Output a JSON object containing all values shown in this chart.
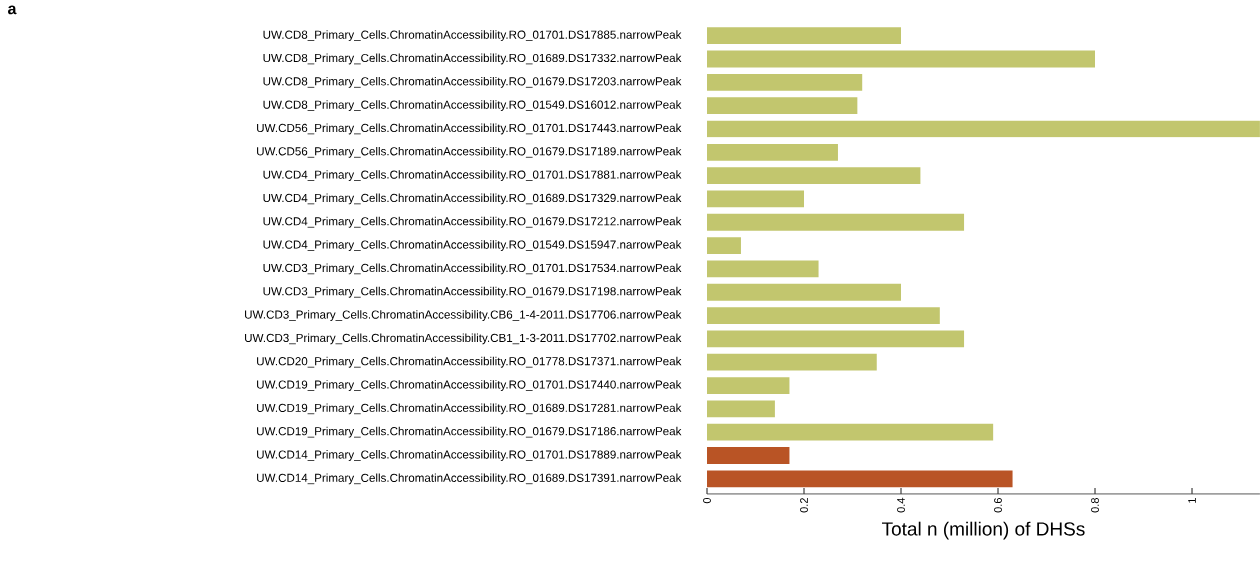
{
  "chart_data": {
    "type": "bar",
    "orientation": "horizontal",
    "title": "a",
    "xlabel": "Total n (million) of DHSs",
    "categories": [
      "UW.CD8_Primary_Cells.ChromatinAccessibility.RO_01701.DS17885.narrowPeak",
      "UW.CD8_Primary_Cells.ChromatinAccessibility.RO_01689.DS17332.narrowPeak",
      "UW.CD8_Primary_Cells.ChromatinAccessibility.RO_01679.DS17203.narrowPeak",
      "UW.CD8_Primary_Cells.ChromatinAccessibility.RO_01549.DS16012.narrowPeak",
      "UW.CD56_Primary_Cells.ChromatinAccessibility.RO_01701.DS17443.narrowPeak",
      "UW.CD56_Primary_Cells.ChromatinAccessibility.RO_01679.DS17189.narrowPeak",
      "UW.CD4_Primary_Cells.ChromatinAccessibility.RO_01701.DS17881.narrowPeak",
      "UW.CD4_Primary_Cells.ChromatinAccessibility.RO_01689.DS17329.narrowPeak",
      "UW.CD4_Primary_Cells.ChromatinAccessibility.RO_01679.DS17212.narrowPeak",
      "UW.CD4_Primary_Cells.ChromatinAccessibility.RO_01549.DS15947.narrowPeak",
      "UW.CD3_Primary_Cells.ChromatinAccessibility.RO_01701.DS17534.narrowPeak",
      "UW.CD3_Primary_Cells.ChromatinAccessibility.RO_01679.DS17198.narrowPeak",
      "UW.CD3_Primary_Cells.ChromatinAccessibility.CB6_1-4-2011.DS17706.narrowPeak",
      "UW.CD3_Primary_Cells.ChromatinAccessibility.CB1_1-3-2011.DS17702.narrowPeak",
      "UW.CD20_Primary_Cells.ChromatinAccessibility.RO_01778.DS17371.narrowPeak",
      "UW.CD19_Primary_Cells.ChromatinAccessibility.RO_01701.DS17440.narrowPeak",
      "UW.CD19_Primary_Cells.ChromatinAccessibility.RO_01689.DS17281.narrowPeak",
      "UW.CD19_Primary_Cells.ChromatinAccessibility.RO_01679.DS17186.narrowPeak",
      "UW.CD14_Primary_Cells.ChromatinAccessibility.RO_01701.DS17889.narrowPeak",
      "UW.CD14_Primary_Cells.ChromatinAccessibility.RO_01689.DS17391.narrowPeak"
    ],
    "values": [
      0.4,
      0.8,
      0.32,
      0.31,
      1.14,
      0.27,
      0.44,
      0.2,
      0.53,
      0.07,
      0.23,
      0.4,
      0.48,
      0.53,
      0.35,
      0.17,
      0.14,
      0.59,
      0.17,
      0.63
    ],
    "colors": [
      "#c2c66e",
      "#c2c66e",
      "#c2c66e",
      "#c2c66e",
      "#c2c66e",
      "#c2c66e",
      "#c2c66e",
      "#c2c66e",
      "#c2c66e",
      "#c2c66e",
      "#c2c66e",
      "#c2c66e",
      "#c2c66e",
      "#c2c66e",
      "#c2c66e",
      "#c2c66e",
      "#c2c66e",
      "#c2c66e",
      "#b95425",
      "#b95425"
    ],
    "xlim": [
      0,
      1.14
    ],
    "xticks": [
      0,
      0.2,
      0.4,
      0.6,
      0.8,
      1
    ]
  }
}
